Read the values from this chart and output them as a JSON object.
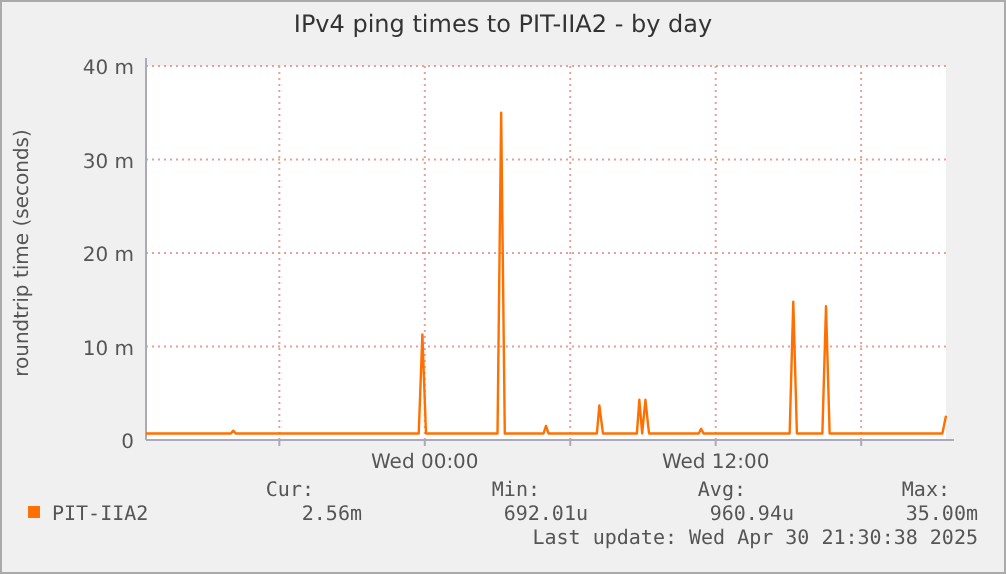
{
  "chart_data": {
    "type": "line",
    "title": "IPv4 ping times to PIT-IIA2 - by day",
    "ylabel": "roundtrip time (seconds)",
    "xlim": [
      "2025-04-29T12:30",
      "2025-04-30T21:30"
    ],
    "xticks": [
      {
        "value": "2025-04-29T18:00",
        "label": null
      },
      {
        "value": "2025-04-30T00:00",
        "label": "Wed 00:00"
      },
      {
        "value": "2025-04-30T06:00",
        "label": null
      },
      {
        "value": "2025-04-30T12:00",
        "label": "Wed 12:00"
      },
      {
        "value": "2025-04-30T18:00",
        "label": null
      }
    ],
    "ylim": [
      0,
      40
    ],
    "yticks": [
      0,
      {
        "value": 10,
        "label": "10 m"
      },
      {
        "value": 20,
        "label": "20 m"
      },
      {
        "value": 30,
        "label": "30 m"
      },
      {
        "value": 40,
        "label": "40 m"
      }
    ],
    "grid": true,
    "legend": "bottom",
    "line_style": "solid",
    "marker": "none",
    "series": [
      {
        "name": "PIT-IIA2",
        "color": "#ff7000",
        "x": [
          "2025-04-29T12:30",
          "2025-04-29T16:00",
          "2025-04-29T16:06",
          "2025-04-29T16:12",
          "2025-04-29T23:45",
          "2025-04-29T23:54",
          "2025-04-30T00:03",
          "2025-04-30T03:00",
          "2025-04-30T03:09",
          "2025-04-30T03:18",
          "2025-04-30T04:54",
          "2025-04-30T05:00",
          "2025-04-30T05:06",
          "2025-04-30T07:06",
          "2025-04-30T07:12",
          "2025-04-30T07:21",
          "2025-04-30T08:45",
          "2025-04-30T08:51",
          "2025-04-30T08:58",
          "2025-04-30T09:06",
          "2025-04-30T09:15",
          "2025-04-30T11:18",
          "2025-04-30T11:24",
          "2025-04-30T11:30",
          "2025-04-30T15:03",
          "2025-04-30T15:12",
          "2025-04-30T15:21",
          "2025-04-30T16:24",
          "2025-04-30T16:33",
          "2025-04-30T16:42",
          "2025-04-30T21:21",
          "2025-04-30T21:30"
        ],
        "values": [
          0.7,
          0.7,
          1.0,
          0.7,
          0.7,
          11.3,
          0.7,
          0.7,
          35,
          0.7,
          0.7,
          1.5,
          0.7,
          0.7,
          3.7,
          0.7,
          0.7,
          4.3,
          0.7,
          4.3,
          0.7,
          0.7,
          1.2,
          0.7,
          0.7,
          14.8,
          0.7,
          0.7,
          14.3,
          0.7,
          0.7,
          2.6
        ]
      }
    ],
    "annotations": [
      "Cur:",
      "Min:",
      "Avg:",
      "Max:",
      "2.56m",
      "692.01u",
      "960.94u",
      "35.00m",
      "Last update: Wed Apr 30 21:30:38 2025"
    ]
  }
}
